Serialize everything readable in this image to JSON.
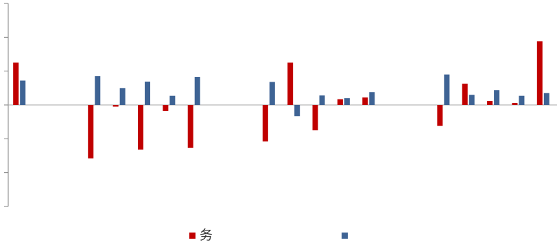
{
  "chart_data": {
    "type": "bar",
    "ylim": [
      -3,
      3
    ],
    "yticks": [
      -3,
      -2,
      -1,
      0,
      1,
      2,
      3
    ],
    "grid": false,
    "legend_position": "bottom",
    "categories": [
      "",
      "",
      "",
      "",
      "",
      "",
      "",
      "",
      "",
      "",
      "",
      "",
      "",
      "",
      "",
      "",
      "",
      "",
      "",
      "",
      "",
      ""
    ],
    "series": [
      {
        "name": "务",
        "color": "#c00000",
        "values": [
          1.25,
          0.0,
          0.0,
          -1.58,
          -0.05,
          -1.32,
          -0.18,
          -1.27,
          0.0,
          0.0,
          -1.08,
          1.25,
          -0.75,
          0.17,
          0.22,
          0.0,
          0.0,
          -0.62,
          0.63,
          0.12,
          0.06,
          1.88
        ]
      },
      {
        "name": "",
        "color": "#3e6394",
        "values": [
          0.72,
          0.0,
          0.0,
          0.85,
          0.5,
          0.69,
          0.27,
          0.83,
          0.0,
          0.0,
          0.68,
          -0.33,
          0.28,
          0.2,
          0.38,
          0.0,
          0.0,
          0.9,
          0.3,
          0.44,
          0.27,
          0.35
        ]
      }
    ]
  }
}
